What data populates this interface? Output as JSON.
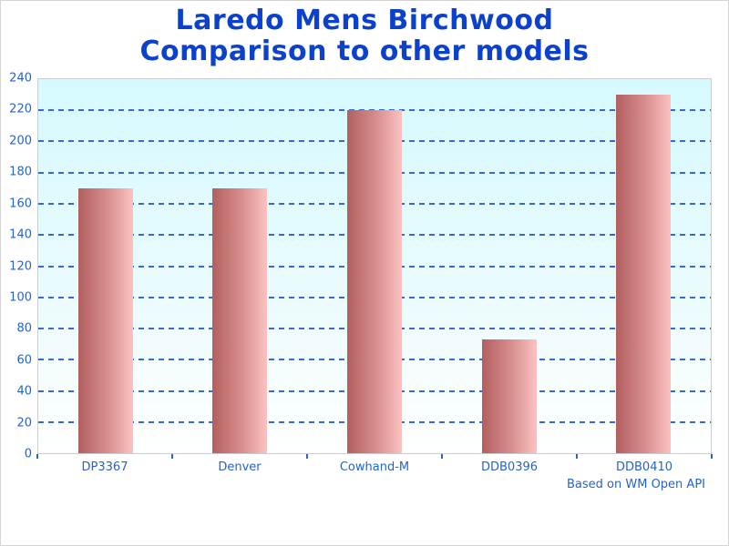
{
  "title": {
    "line1": "Laredo Mens Birchwood",
    "line2": "Comparison to other models"
  },
  "footer_note": "Based on WM Open API",
  "colors": {
    "title": "#0b41cc",
    "axis_labels": "#2563c8",
    "gridlines": "#3a68cf",
    "bar_gradient_dark": "#b25f5f",
    "bar_gradient_light": "#fbc2c2",
    "plot_background_top": "#d5fafe",
    "plot_background_bottom": "#ffffff"
  },
  "chart_data": {
    "type": "bar",
    "title": "Laredo Mens Birchwood Comparison to other models",
    "categories": [
      "DP3367",
      "Denver",
      "Cowhand-M",
      "DDB0396",
      "DDB0410"
    ],
    "values": [
      170,
      170,
      220,
      73,
      230
    ],
    "xlabel": "",
    "ylabel": "",
    "ylim": [
      0,
      240
    ],
    "ytick_step": 20,
    "ytick_labels": [
      "0",
      "20",
      "40",
      "60",
      "80",
      "100",
      "120",
      "140",
      "160",
      "180",
      "200",
      "220",
      "240"
    ],
    "grid": true,
    "grid_style": "dashed",
    "legend": false,
    "annotation": "Based on WM Open API"
  }
}
